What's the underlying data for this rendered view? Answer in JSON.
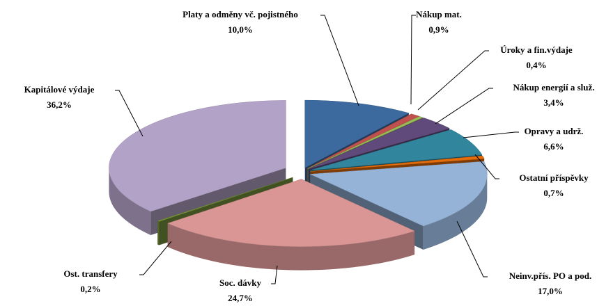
{
  "chart_data": {
    "type": "pie",
    "categories": [
      "Platy a odměny vč. pojistného",
      "Nákup mat.",
      "Úroky a fin.výdaje",
      "Nákup energií a služ.",
      "Opravy a udrž.",
      "Ostatní příspěvky",
      "Neinv.přís. PO a pod.",
      "Soc. dávky",
      "Ost. transfery",
      "Kapitálové výdaje"
    ],
    "values": [
      10.0,
      0.9,
      0.4,
      3.4,
      6.6,
      0.7,
      17.0,
      24.7,
      0.2,
      36.2
    ],
    "value_labels": [
      "10,0%",
      "0,9%",
      "0,4%",
      "3,4%",
      "6,6%",
      "0,7%",
      "17,0%",
      "24,7%",
      "0,2%",
      "36,2%"
    ],
    "colors": [
      "#3d6a9e",
      "#c0504d",
      "#9bbb59",
      "#604a7b",
      "#31859c",
      "#e46c0a",
      "#95b3d7",
      "#d99694",
      "#77933c",
      "#b3a2c7"
    ]
  }
}
